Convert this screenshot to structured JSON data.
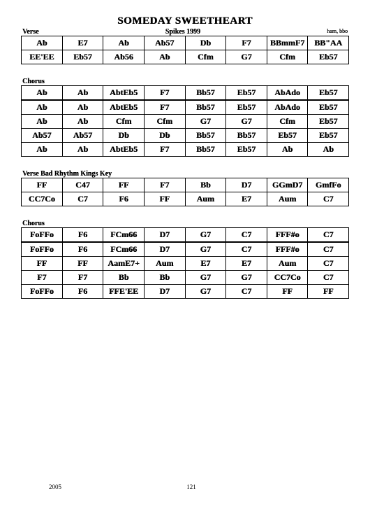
{
  "title": "SOMEDAY SWEETHEART",
  "credits": "Spikes 1999",
  "sections": [
    {
      "name": "Verse",
      "right": "ham, bbo",
      "rows": [
        [
          "Ab",
          "E7",
          "Ab",
          "Ab57",
          "Db",
          "F7",
          "BBmmF7",
          "BB\"AA"
        ],
        [
          "EE'EE",
          "Eb57",
          "Ab56",
          "Ab",
          "Cfm",
          "G7",
          "Cfm",
          "Eb57"
        ]
      ]
    },
    {
      "name": "Chorus",
      "right": "",
      "rows": [
        [
          "Ab",
          "Ab",
          "AbtEb5",
          "F7",
          "Bb57",
          "Eb57",
          "AbAdo",
          "Eb57"
        ],
        [
          "Ab",
          "Ab",
          "Cfm",
          "Cfm",
          "G7",
          "G7",
          "Cfm",
          "Eb57"
        ],
        [
          "Ab57",
          "Ab57",
          "Db",
          "Db",
          "Bb57",
          "Bb57",
          "Eb57",
          "Eb57"
        ],
        [
          "Ab",
          "Ab",
          "AbtEb5",
          "F7",
          "Bb57",
          "Eb57",
          "Ab",
          "Ab"
        ]
      ]
    },
    {
      "name": "Verse Bad Rhythm Kings Key",
      "right": "",
      "rows": [
        [
          "FF",
          "C47",
          "FF",
          "F7",
          "Bb",
          "D7",
          "GGmD7",
          "GmfFo"
        ],
        [
          "CC7Co",
          "C7",
          "F6",
          "FF",
          "Aum",
          "E7",
          "Aum",
          "C7"
        ]
      ]
    },
    {
      "name": "Chorus",
      "right": "",
      "rows": [
        [
          "FoFFo",
          "F6",
          "FCm66",
          "D7",
          "G7",
          "C7",
          "FFF#o",
          "C7"
        ],
        [
          "FF",
          "FF",
          "AamE7+",
          "Aum",
          "E7",
          "E7",
          "Aum",
          "C7"
        ],
        [
          "F7",
          "F7",
          "Bb",
          "Bb",
          "G7",
          "G7",
          "CC7Co",
          "C7"
        ],
        [
          "FoFFo",
          "F6",
          "FFE'EE",
          "D7",
          "G7",
          "C7",
          "FF",
          "FF"
        ]
      ]
    }
  ],
  "footer": {
    "year": "2005",
    "page": "121"
  }
}
